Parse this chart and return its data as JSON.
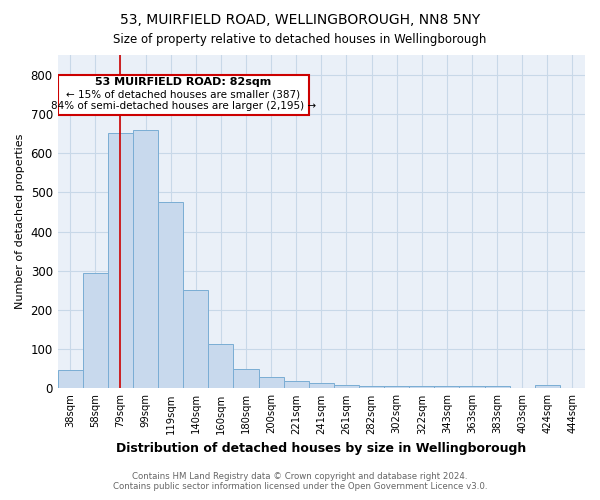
{
  "title": "53, MUIRFIELD ROAD, WELLINGBOROUGH, NN8 5NY",
  "subtitle": "Size of property relative to detached houses in Wellingborough",
  "xlabel": "Distribution of detached houses by size in Wellingborough",
  "ylabel": "Number of detached properties",
  "footer1": "Contains HM Land Registry data © Crown copyright and database right 2024.",
  "footer2": "Contains public sector information licensed under the Open Government Licence v3.0.",
  "categories": [
    "38sqm",
    "58sqm",
    "79sqm",
    "99sqm",
    "119sqm",
    "140sqm",
    "160sqm",
    "180sqm",
    "200sqm",
    "221sqm",
    "241sqm",
    "261sqm",
    "282sqm",
    "302sqm",
    "322sqm",
    "343sqm",
    "363sqm",
    "383sqm",
    "403sqm",
    "424sqm",
    "444sqm"
  ],
  "values": [
    48,
    293,
    650,
    660,
    475,
    250,
    113,
    50,
    28,
    18,
    15,
    8,
    6,
    5,
    5,
    5,
    5,
    5,
    2,
    10,
    2
  ],
  "bar_color": "#c8d9ed",
  "bar_edge_color": "#7aadd4",
  "vline_x": 2,
  "vline_color": "#cc0000",
  "annotation_line1": "53 MUIRFIELD ROAD: 82sqm",
  "annotation_line2": "← 15% of detached houses are smaller (387)",
  "annotation_line3": "84% of semi-detached houses are larger (2,195) →",
  "annotation_box_color": "#cc0000",
  "ylim": [
    0,
    850
  ],
  "yticks": [
    0,
    100,
    200,
    300,
    400,
    500,
    600,
    700,
    800
  ],
  "grid_color": "#c8d8e8",
  "background_color": "#eaf0f8"
}
